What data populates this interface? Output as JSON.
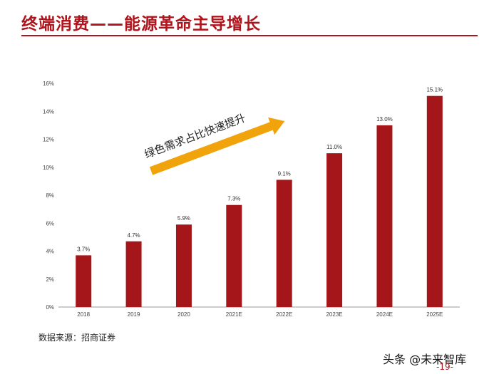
{
  "header": {
    "title": "终端消费——能源革命主导增长"
  },
  "colors": {
    "bar": "#a4161a",
    "arrow": "#f0a30a",
    "accent": "#b0131b"
  },
  "chart_data": {
    "type": "bar",
    "categories": [
      "2018",
      "2019",
      "2020",
      "2021E",
      "2022E",
      "2023E",
      "2024E",
      "2025E"
    ],
    "values": [
      3.7,
      4.7,
      5.9,
      7.3,
      9.1,
      11.0,
      13.0,
      15.1
    ],
    "value_labels": [
      "3.7%",
      "4.7%",
      "5.9%",
      "7.3%",
      "9.1%",
      "11.0%",
      "13.0%",
      "15.1%"
    ],
    "yticks": [
      "0%",
      "2%",
      "4%",
      "6%",
      "8%",
      "10%",
      "12%",
      "14%",
      "16%"
    ],
    "ylim": [
      0,
      16
    ],
    "grid": false,
    "legend": "none",
    "annotation": {
      "text": "绿色需求占比快速提升"
    }
  },
  "footer": {
    "source": "数据来源：招商证券",
    "watermark": "头条 @未来智库",
    "page": "-19-"
  }
}
